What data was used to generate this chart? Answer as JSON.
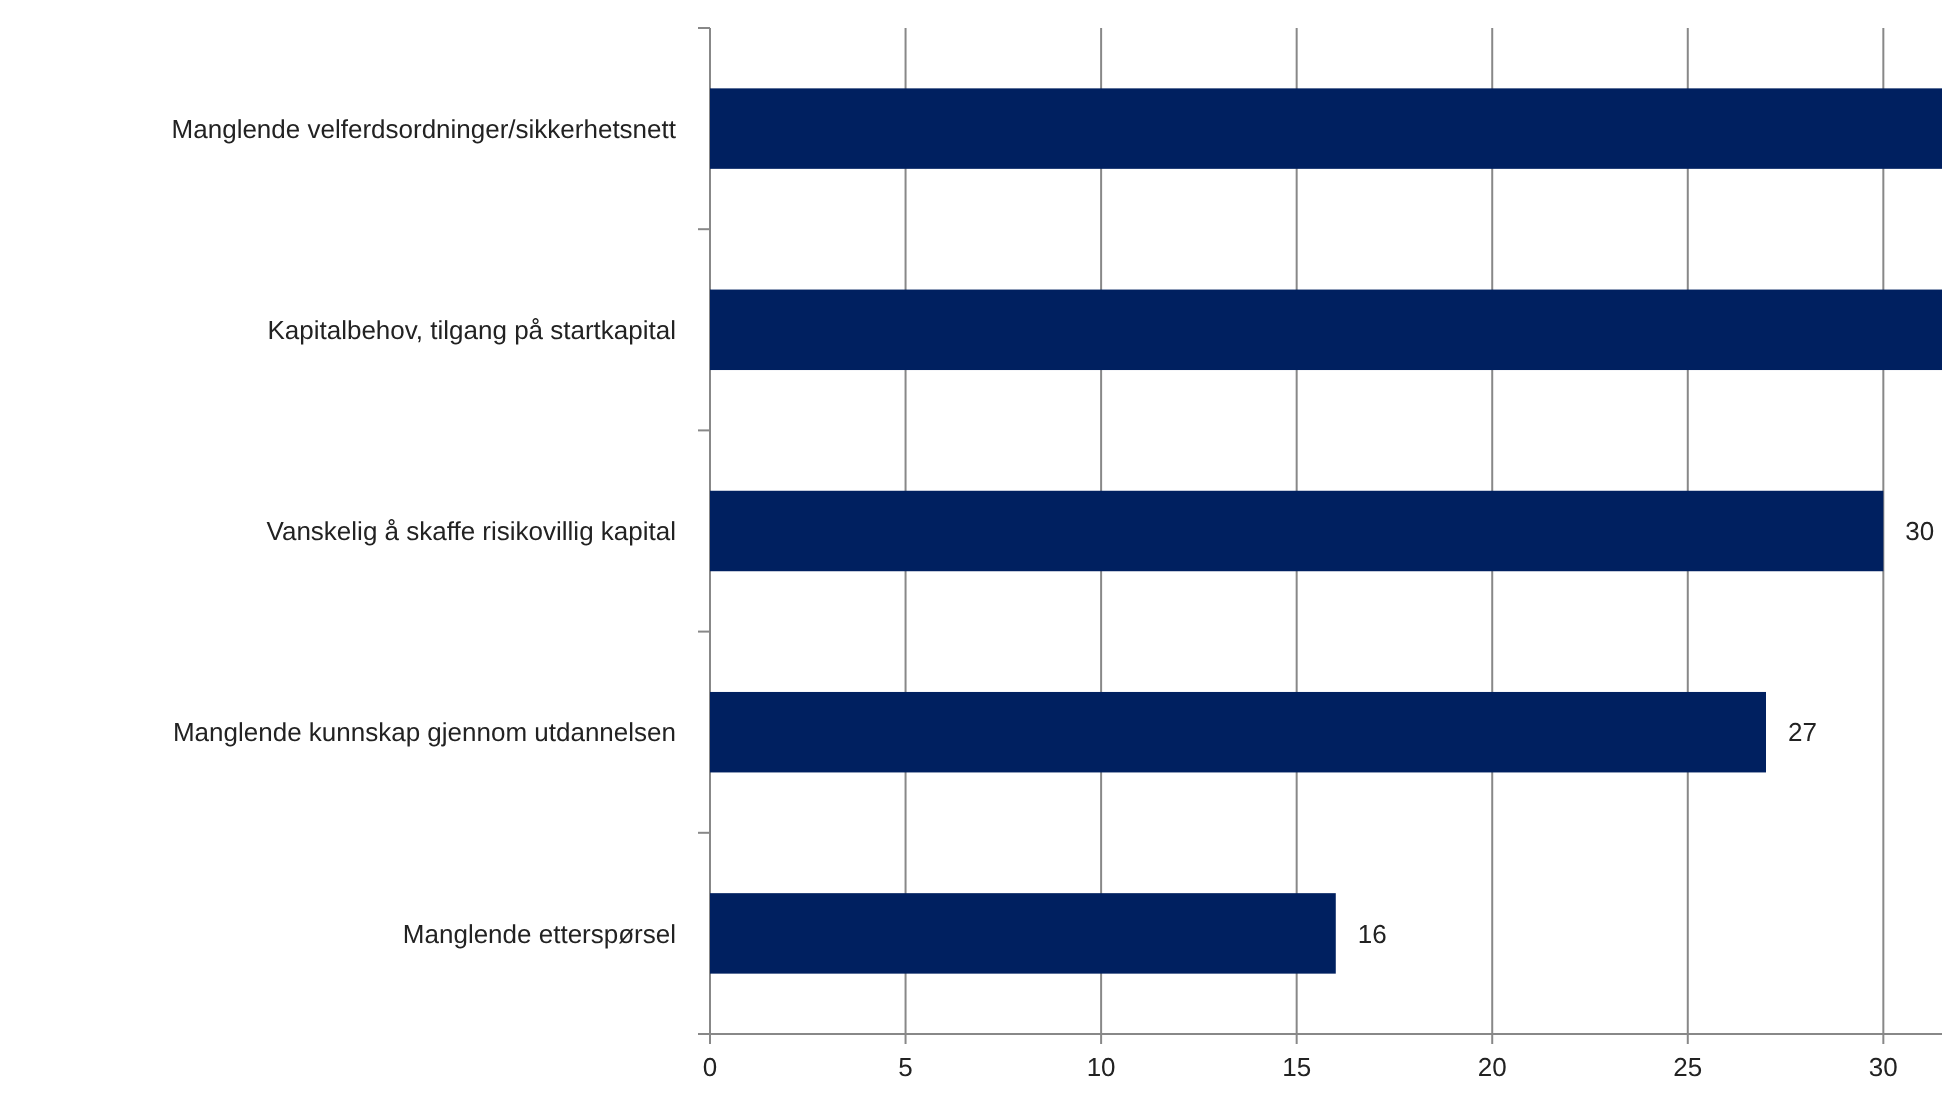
{
  "chart_data": {
    "type": "bar",
    "orientation": "horizontal",
    "categories": [
      "Manglende velferdsordninger/sikkerhetsnett",
      "Kapitalbehov, tilgang på startkapital",
      "Vanskelig å skaffe risikovillig kapital",
      "Manglende kunnskap gjennom utdannelsen",
      "Manglende etterspørsel"
    ],
    "values": [
      31.5,
      31.5,
      30,
      27,
      16
    ],
    "value_labels": [
      null,
      null,
      "30",
      "27",
      "16"
    ],
    "color": "#002060",
    "xlim": [
      0,
      31.5
    ],
    "xticks": [
      0,
      5,
      10,
      15,
      20,
      25,
      30
    ],
    "grid": "x"
  }
}
